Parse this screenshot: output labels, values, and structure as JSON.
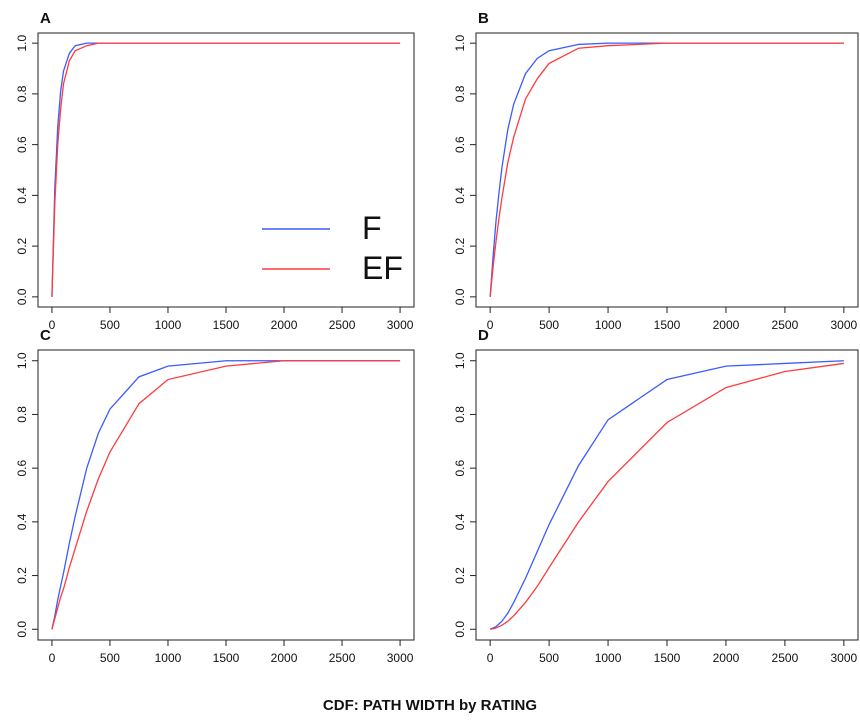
{
  "title": "CDF:  PATH WIDTH by RATING",
  "chart_data": [
    {
      "type": "line",
      "title": "A",
      "legend": "bottomright",
      "x": [
        0,
        25,
        50,
        75,
        100,
        150,
        200,
        300,
        400,
        500,
        750,
        1000,
        1500,
        2000,
        2500,
        3000
      ],
      "series": [
        {
          "name": "F",
          "color": "#3b5bff",
          "values": [
            0,
            0.43,
            0.67,
            0.81,
            0.89,
            0.96,
            0.99,
            1,
            1,
            1,
            1,
            1,
            1,
            1,
            1,
            1
          ]
        },
        {
          "name": "EF",
          "color": "#ff3b3b",
          "values": [
            0,
            0.37,
            0.6,
            0.74,
            0.84,
            0.93,
            0.97,
            0.99,
            1,
            1,
            1,
            1,
            1,
            1,
            1,
            1
          ]
        }
      ],
      "xlim": [
        -120,
        3120
      ],
      "ylim": [
        -0.04,
        1.04
      ],
      "xticks": [
        0,
        500,
        1000,
        1500,
        2000,
        2500,
        3000
      ],
      "yticks": [
        {
          "value": 0,
          "label": "0.0"
        },
        0.2,
        0.4,
        0.6,
        0.8,
        {
          "value": 1,
          "label": "1.0"
        }
      ]
    },
    {
      "type": "line",
      "title": "B",
      "x": [
        0,
        25,
        50,
        75,
        100,
        150,
        200,
        300,
        400,
        500,
        750,
        1000,
        1500,
        2000,
        2500,
        3000
      ],
      "series": [
        {
          "name": "F",
          "color": "#3b5bff",
          "values": [
            0,
            0.16,
            0.3,
            0.41,
            0.51,
            0.66,
            0.76,
            0.88,
            0.94,
            0.97,
            0.995,
            1,
            1,
            1,
            1,
            1
          ]
        },
        {
          "name": "EF",
          "color": "#ff3b3b",
          "values": [
            0,
            0.12,
            0.22,
            0.31,
            0.39,
            0.53,
            0.63,
            0.78,
            0.86,
            0.92,
            0.98,
            0.99,
            1,
            1,
            1,
            1
          ]
        }
      ],
      "xlim": [
        -120,
        3120
      ],
      "ylim": [
        -0.04,
        1.04
      ],
      "xticks": [
        0,
        500,
        1000,
        1500,
        2000,
        2500,
        3000
      ],
      "yticks": [
        {
          "value": 0,
          "label": "0.0"
        },
        0.2,
        0.4,
        0.6,
        0.8,
        {
          "value": 1,
          "label": "1.0"
        }
      ]
    },
    {
      "type": "line",
      "title": "C",
      "x": [
        0,
        25,
        50,
        75,
        100,
        150,
        200,
        300,
        400,
        500,
        750,
        1000,
        1500,
        2000,
        2500,
        3000
      ],
      "series": [
        {
          "name": "F",
          "color": "#3b5bff",
          "values": [
            0,
            0.05,
            0.11,
            0.16,
            0.21,
            0.32,
            0.42,
            0.6,
            0.73,
            0.82,
            0.94,
            0.98,
            1,
            1,
            1,
            1
          ]
        },
        {
          "name": "EF",
          "color": "#ff3b3b",
          "values": [
            0,
            0.04,
            0.08,
            0.12,
            0.15,
            0.23,
            0.3,
            0.44,
            0.56,
            0.66,
            0.84,
            0.93,
            0.98,
            1,
            1,
            1
          ]
        }
      ],
      "xlim": [
        -120,
        3120
      ],
      "ylim": [
        -0.04,
        1.04
      ],
      "xticks": [
        0,
        500,
        1000,
        1500,
        2000,
        2500,
        3000
      ],
      "yticks": [
        {
          "value": 0,
          "label": "0.0"
        },
        0.2,
        0.4,
        0.6,
        0.8,
        {
          "value": 1,
          "label": "1.0"
        }
      ]
    },
    {
      "type": "line",
      "title": "D",
      "x": [
        0,
        25,
        50,
        75,
        100,
        150,
        200,
        300,
        400,
        500,
        750,
        1000,
        1500,
        2000,
        2500,
        3000
      ],
      "series": [
        {
          "name": "F",
          "color": "#3b5bff",
          "values": [
            0,
            0.005,
            0.01,
            0.02,
            0.03,
            0.06,
            0.1,
            0.19,
            0.29,
            0.39,
            0.61,
            0.78,
            0.93,
            0.98,
            0.99,
            1
          ]
        },
        {
          "name": "EF",
          "color": "#ff3b3b",
          "values": [
            0,
            0.002,
            0.005,
            0.01,
            0.015,
            0.03,
            0.05,
            0.1,
            0.16,
            0.23,
            0.4,
            0.55,
            0.77,
            0.9,
            0.96,
            0.99
          ]
        }
      ],
      "xlim": [
        -120,
        3120
      ],
      "ylim": [
        -0.04,
        1.04
      ],
      "xticks": [
        0,
        500,
        1000,
        1500,
        2000,
        2500,
        3000
      ],
      "yticks": [
        {
          "value": 0,
          "label": "0.0"
        },
        0.2,
        0.4,
        0.6,
        0.8,
        {
          "value": 1,
          "label": "1.0"
        }
      ]
    }
  ]
}
